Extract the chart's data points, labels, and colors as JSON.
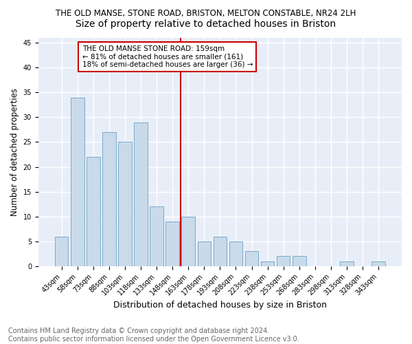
{
  "title": "THE OLD MANSE, STONE ROAD, BRISTON, MELTON CONSTABLE, NR24 2LH",
  "subtitle": "Size of property relative to detached houses in Briston",
  "xlabel": "Distribution of detached houses by size in Briston",
  "ylabel": "Number of detached properties",
  "categories": [
    "43sqm",
    "58sqm",
    "73sqm",
    "88sqm",
    "103sqm",
    "118sqm",
    "133sqm",
    "148sqm",
    "163sqm",
    "178sqm",
    "193sqm",
    "208sqm",
    "223sqm",
    "238sqm",
    "253sqm",
    "268sqm",
    "283sqm",
    "298sqm",
    "313sqm",
    "328sqm",
    "343sqm"
  ],
  "values": [
    6,
    34,
    22,
    27,
    25,
    29,
    12,
    9,
    10,
    5,
    6,
    5,
    3,
    1,
    2,
    2,
    0,
    0,
    1,
    0,
    1
  ],
  "bar_color": "#c9daea",
  "bar_edge_color": "#7aaac8",
  "reference_line_x": 8,
  "annotation_line1": "THE OLD MANSE STONE ROAD: 159sqm",
  "annotation_line2": "← 81% of detached houses are smaller (161)",
  "annotation_line3": "18% of semi-detached houses are larger (36) →",
  "annotation_box_facecolor": "#ffffff",
  "annotation_box_edgecolor": "#cc0000",
  "vline_color": "#cc0000",
  "ylim": [
    0,
    46
  ],
  "yticks": [
    0,
    5,
    10,
    15,
    20,
    25,
    30,
    35,
    40,
    45
  ],
  "background_color": "#e8eef8",
  "grid_color": "#ffffff",
  "fig_facecolor": "#ffffff",
  "footnote": "Contains HM Land Registry data © Crown copyright and database right 2024.\nContains public sector information licensed under the Open Government Licence v3.0.",
  "title_fontsize": 8.5,
  "subtitle_fontsize": 10,
  "xlabel_fontsize": 9,
  "ylabel_fontsize": 8.5,
  "tick_fontsize": 7,
  "annotation_fontsize": 7.5,
  "footnote_fontsize": 7
}
